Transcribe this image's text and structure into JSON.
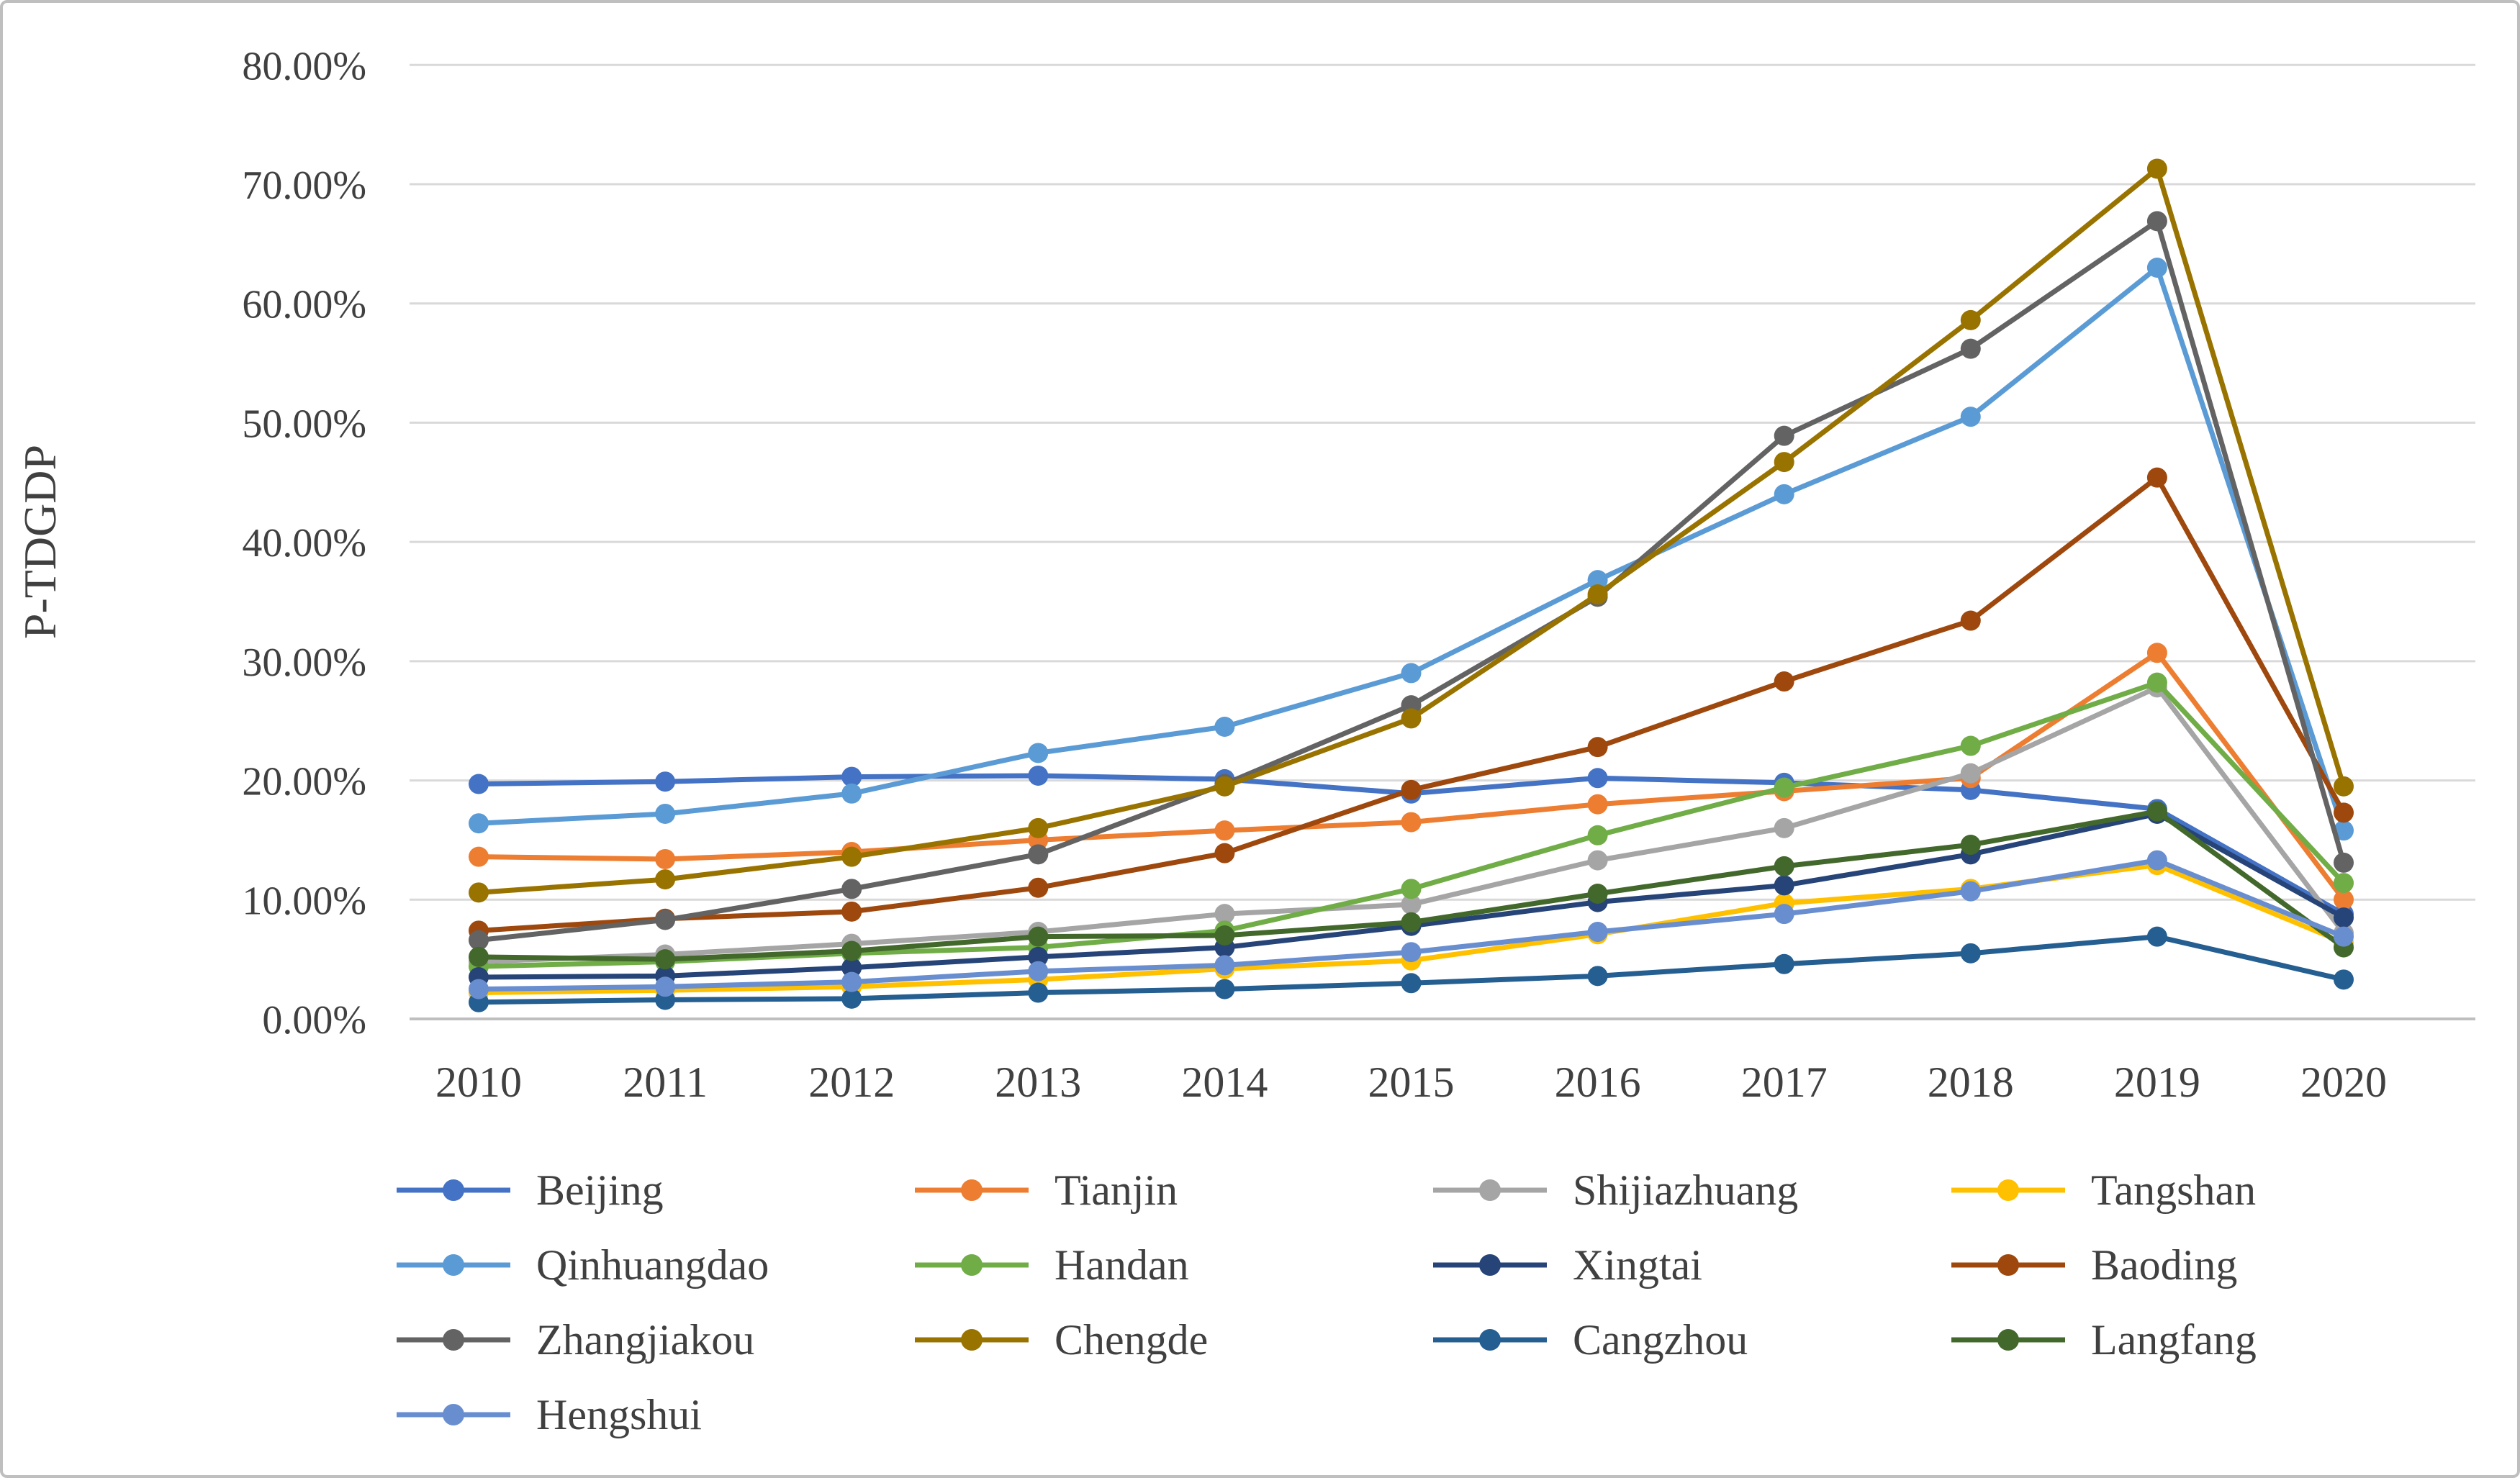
{
  "y_axis": {
    "title": "P-TDGDP",
    "ticks": [
      "0.00%",
      "10.00%",
      "20.00%",
      "30.00%",
      "40.00%",
      "50.00%",
      "60.00%",
      "70.00%",
      "80.00%"
    ],
    "min": 0,
    "max": 80,
    "step": 10
  },
  "x_axis": {
    "categories": [
      "2010",
      "2011",
      "2012",
      "2013",
      "2014",
      "2015",
      "2016",
      "2017",
      "2018",
      "2019",
      "2020"
    ]
  },
  "colors": {
    "gridline": "#d9d9d9",
    "axis_line": "#bfbfbf",
    "tick_text": "#404040"
  },
  "chart_data": {
    "type": "line",
    "title": "",
    "xlabel": "",
    "ylabel": "P-TDGDP",
    "ylim": [
      0,
      80
    ],
    "y_tick_format": "percent-2dp",
    "grid": "horizontal",
    "legend_position": "bottom",
    "x": [
      2010,
      2011,
      2012,
      2013,
      2014,
      2015,
      2016,
      2017,
      2018,
      2019,
      2020
    ],
    "series": [
      {
        "name": "Beijing",
        "color": "#4472C4",
        "values": [
          19.7,
          19.9,
          20.3,
          20.4,
          20.1,
          18.9,
          20.2,
          19.8,
          19.2,
          17.6,
          8.8
        ]
      },
      {
        "name": "Tianjin",
        "color": "#ED7D31",
        "values": [
          13.6,
          13.4,
          14.0,
          15.0,
          15.8,
          16.5,
          18.0,
          19.1,
          20.2,
          30.7,
          10.0
        ]
      },
      {
        "name": "Shijiazhuang",
        "color": "#A5A5A5",
        "values": [
          4.8,
          5.4,
          6.3,
          7.3,
          8.8,
          9.6,
          13.3,
          16.0,
          20.6,
          27.8,
          7.2
        ]
      },
      {
        "name": "Tangshan",
        "color": "#FFC000",
        "values": [
          2.2,
          2.4,
          2.7,
          3.3,
          4.2,
          4.9,
          7.1,
          9.7,
          10.9,
          12.9,
          6.4
        ]
      },
      {
        "name": "Qinhuangdao",
        "color": "#5B9BD5",
        "values": [
          16.4,
          17.2,
          18.9,
          22.3,
          24.5,
          29.0,
          36.8,
          44.0,
          50.5,
          63.0,
          15.8
        ]
      },
      {
        "name": "Handan",
        "color": "#70AD47",
        "values": [
          4.4,
          4.8,
          5.5,
          6.0,
          7.4,
          10.9,
          15.4,
          19.4,
          22.9,
          28.2,
          11.4
        ]
      },
      {
        "name": "Xingtai",
        "color": "#264478",
        "values": [
          3.5,
          3.6,
          4.3,
          5.2,
          6.0,
          7.8,
          9.8,
          11.2,
          13.8,
          17.2,
          8.5
        ]
      },
      {
        "name": "Baoding",
        "color": "#9E480E",
        "values": [
          7.4,
          8.4,
          9.0,
          11.0,
          13.9,
          19.2,
          22.8,
          28.3,
          33.4,
          45.4,
          17.3
        ]
      },
      {
        "name": "Zhangjiakou",
        "color": "#636363",
        "values": [
          6.6,
          8.3,
          10.9,
          13.8,
          19.7,
          26.3,
          35.4,
          48.9,
          56.2,
          66.9,
          13.1
        ]
      },
      {
        "name": "Chengde",
        "color": "#997300",
        "values": [
          10.6,
          11.7,
          13.6,
          16.0,
          19.5,
          25.2,
          35.6,
          46.7,
          58.6,
          71.3,
          19.5
        ]
      },
      {
        "name": "Cangzhou",
        "color": "#255E91",
        "values": [
          1.4,
          1.6,
          1.7,
          2.2,
          2.5,
          3.0,
          3.6,
          4.6,
          5.5,
          6.9,
          3.3
        ]
      },
      {
        "name": "Langfang",
        "color": "#43682B",
        "values": [
          5.2,
          5.0,
          5.7,
          6.9,
          7.0,
          8.1,
          10.5,
          12.8,
          14.6,
          17.4,
          6.0
        ]
      },
      {
        "name": "Hengshui",
        "color": "#698ED0",
        "values": [
          2.5,
          2.7,
          3.1,
          4.0,
          4.5,
          5.6,
          7.3,
          8.8,
          10.7,
          13.3,
          6.9
        ]
      }
    ]
  }
}
